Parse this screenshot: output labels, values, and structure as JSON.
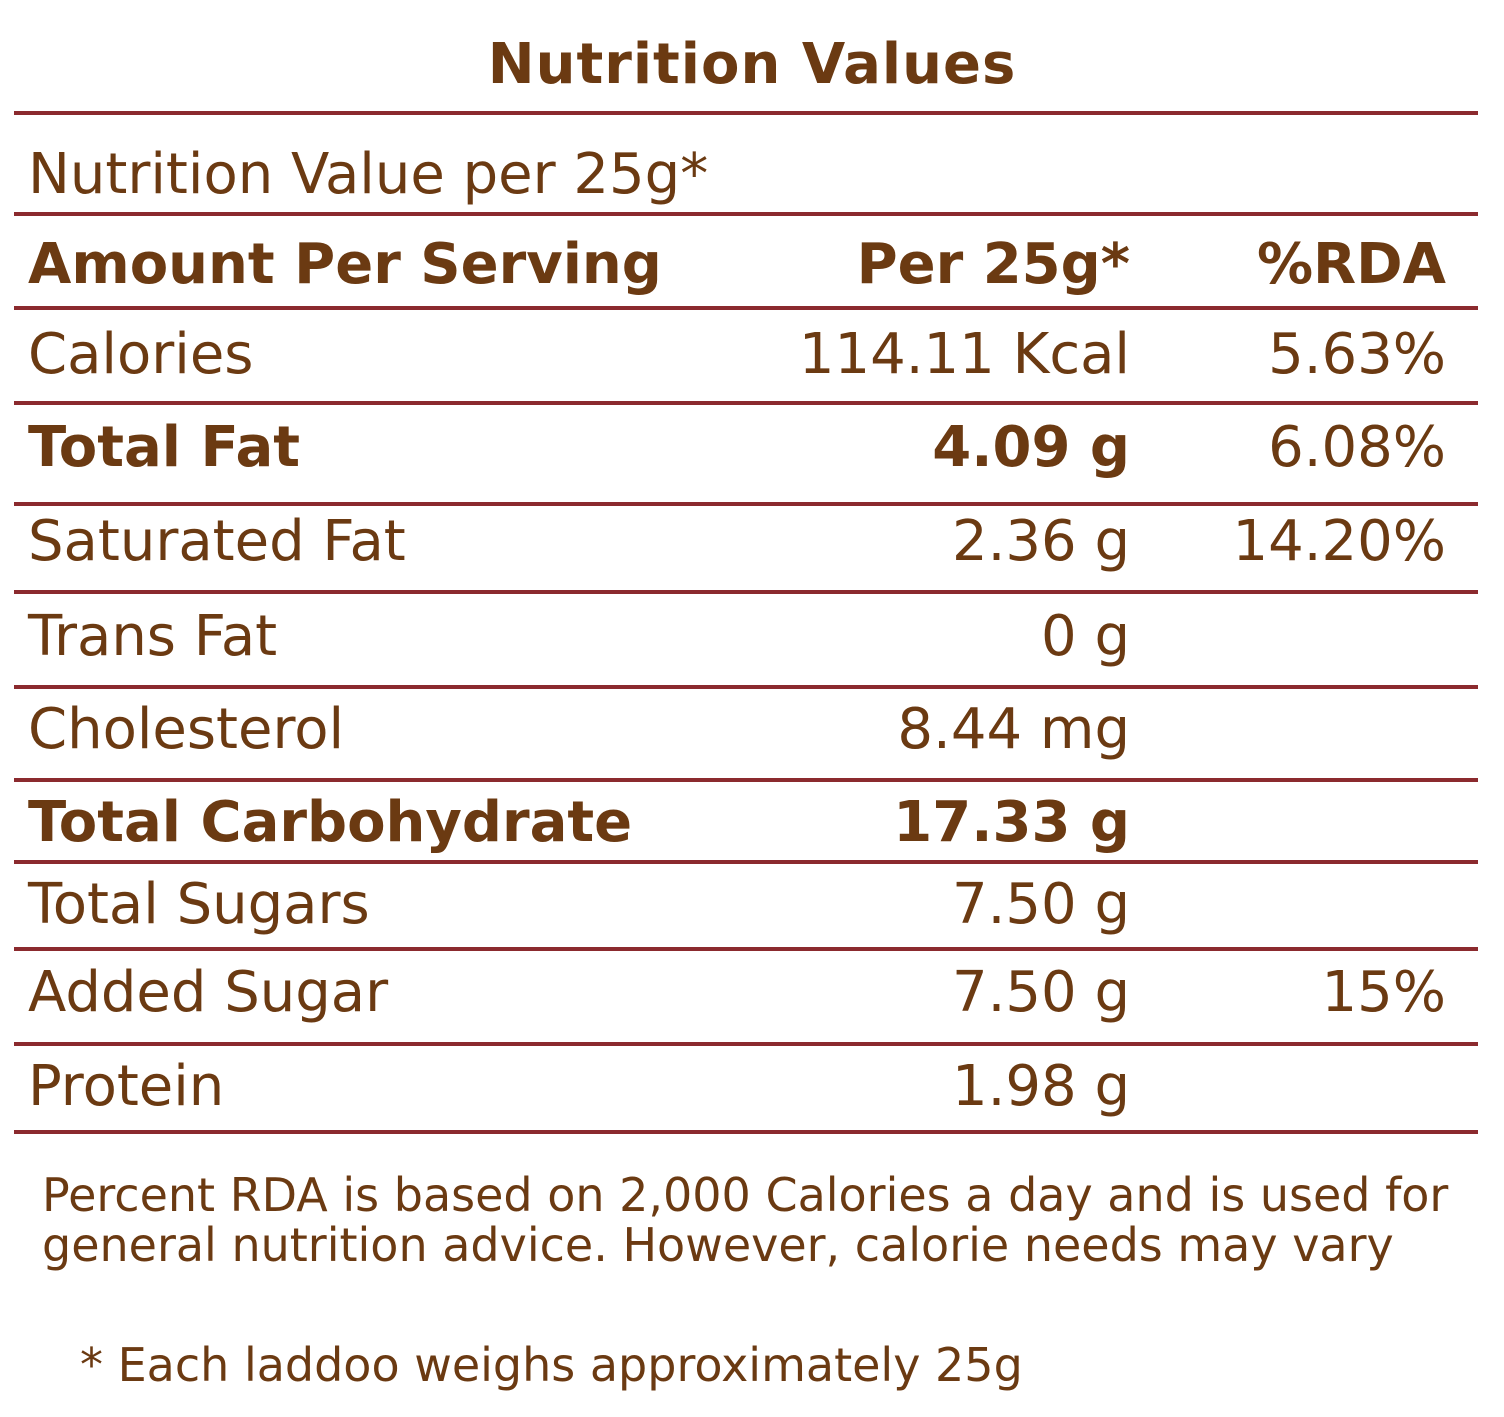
{
  "title": "Nutrition Values",
  "subtitle": "Nutrition Value per 25g*",
  "header": {
    "name": "Amount Per Serving",
    "amount": "Per 25g*",
    "rda": "%RDA"
  },
  "rows": [
    {
      "name": "Calories",
      "amount": "114.11 Kcal",
      "rda": "5.63%"
    },
    {
      "name": "Total Fat",
      "amount": "4.09 g",
      "rda": "6.08%"
    },
    {
      "name": "Saturated Fat",
      "amount": "2.36 g",
      "rda": "14.20%"
    },
    {
      "name": "Trans Fat",
      "amount": "0 g",
      "rda": ""
    },
    {
      "name": "Cholesterol",
      "amount": "8.44 mg",
      "rda": ""
    },
    {
      "name": "Total Carbohydrate",
      "amount": "17.33 g",
      "rda": ""
    },
    {
      "name": "Total Sugars",
      "amount": "7.50 g",
      "rda": ""
    },
    {
      "name": "Added Sugar",
      "amount": "7.50 g",
      "rda": "15%"
    },
    {
      "name": "Protein",
      "amount": "1.98 g",
      "rda": ""
    }
  ],
  "note": "Percent RDA is based on 2,000 Calories a day and is used for general nutrition advice. However, calorie needs may vary",
  "footnote": "* Each laddoo weighs approximately 25g",
  "colors": {
    "text": "#6b3a12",
    "rule": "#8b2a2e"
  }
}
